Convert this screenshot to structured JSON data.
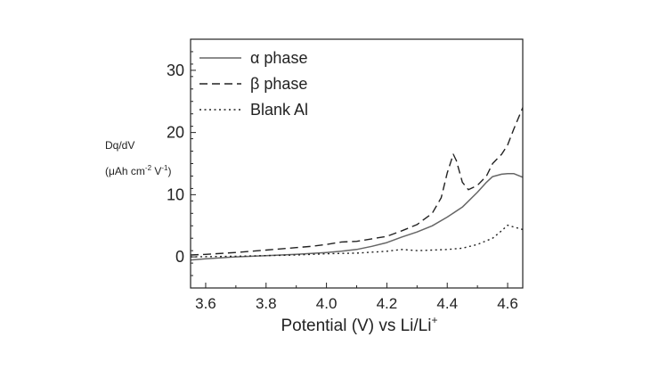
{
  "chart_data": {
    "type": "line",
    "xlabel": "Potential (V) vs Li/Li",
    "xlabel_sup": "+",
    "ylabel_line1": "Dq/dV",
    "ylabel_line2_parts": [
      "(μAh cm",
      "-2",
      " V",
      "-1",
      ")"
    ],
    "xlim": [
      3.55,
      4.65
    ],
    "ylim": [
      -5,
      35
    ],
    "x_ticks": [
      "3.6",
      "3.8",
      "4.0",
      "4.2",
      "4.4",
      "4.6"
    ],
    "x_tick_values": [
      3.6,
      3.8,
      4.0,
      4.2,
      4.4,
      4.6
    ],
    "y_ticks": [
      "0",
      "10",
      "20",
      "30"
    ],
    "y_tick_values": [
      0,
      10,
      20,
      30
    ],
    "grid": false,
    "legend_position": "top-left",
    "series": [
      {
        "name": "α phase",
        "style": "solid",
        "color": "#666666",
        "x": [
          3.55,
          3.6,
          3.7,
          3.8,
          3.9,
          4.0,
          4.05,
          4.1,
          4.15,
          4.2,
          4.25,
          4.3,
          4.35,
          4.4,
          4.45,
          4.5,
          4.53,
          4.55,
          4.58,
          4.6,
          4.62,
          4.65
        ],
        "y": [
          -0.5,
          -0.3,
          0.0,
          0.2,
          0.4,
          0.7,
          0.9,
          1.2,
          1.7,
          2.3,
          3.2,
          4.0,
          5.0,
          6.4,
          8.0,
          10.4,
          12.0,
          12.9,
          13.3,
          13.4,
          13.4,
          12.8
        ]
      },
      {
        "name": "β phase",
        "style": "dashed",
        "color": "#222222",
        "x": [
          3.55,
          3.6,
          3.7,
          3.8,
          3.9,
          3.95,
          4.0,
          4.05,
          4.1,
          4.15,
          4.2,
          4.25,
          4.3,
          4.35,
          4.38,
          4.4,
          4.42,
          4.43,
          4.45,
          4.47,
          4.5,
          4.53,
          4.55,
          4.58,
          4.6,
          4.62,
          4.65
        ],
        "y": [
          0.3,
          0.4,
          0.7,
          1.1,
          1.5,
          1.7,
          2.0,
          2.4,
          2.5,
          2.9,
          3.3,
          4.2,
          5.2,
          7.0,
          9.5,
          13.5,
          16.5,
          15.5,
          12.0,
          10.8,
          11.5,
          13.0,
          15.0,
          16.5,
          18.0,
          20.5,
          24.0
        ]
      },
      {
        "name": "Blank Al",
        "style": "dotted",
        "color": "#222222",
        "x": [
          3.55,
          3.7,
          3.8,
          3.9,
          4.0,
          4.1,
          4.2,
          4.25,
          4.3,
          4.35,
          4.4,
          4.45,
          4.5,
          4.55,
          4.58,
          4.6,
          4.62,
          4.65
        ],
        "y": [
          0.0,
          0.1,
          0.2,
          0.3,
          0.5,
          0.6,
          0.9,
          1.2,
          1.0,
          1.1,
          1.2,
          1.4,
          2.0,
          3.0,
          4.2,
          5.1,
          4.8,
          4.4
        ]
      }
    ]
  }
}
